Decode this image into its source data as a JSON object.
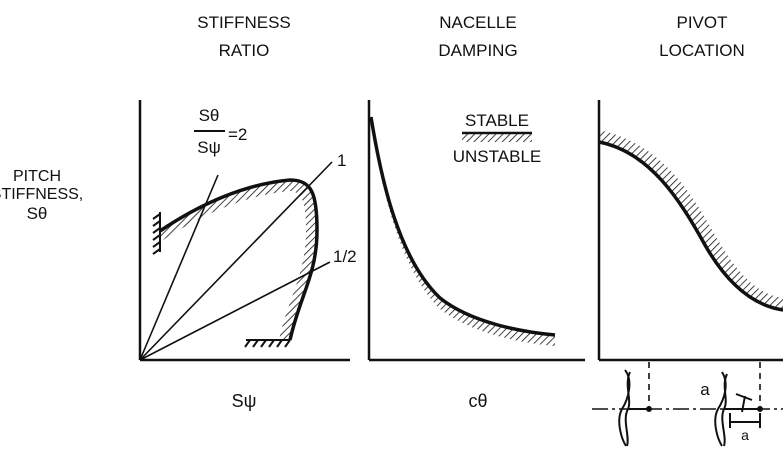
{
  "panel_titles": {
    "stiffness": [
      "STIFFNESS",
      "RATIO"
    ],
    "damping": [
      "NACELLE",
      "DAMPING"
    ],
    "pivot": [
      "PIVOT",
      "LOCATION"
    ]
  },
  "y_axis_label": [
    "PITCH",
    "STIFFNESS,",
    "Sθ"
  ],
  "x_axis_labels": {
    "stiffness": "Sψ",
    "damping": "cθ"
  },
  "ratio_fraction": {
    "numerator": "Sθ",
    "denominator": "Sψ",
    "value": "=2"
  },
  "ray_labels": [
    "1",
    "1/2"
  ],
  "legend": {
    "stable": "STABLE",
    "unstable": "UNSTABLE"
  },
  "pivot_dimension": "a",
  "sketch_dimension": "a"
}
